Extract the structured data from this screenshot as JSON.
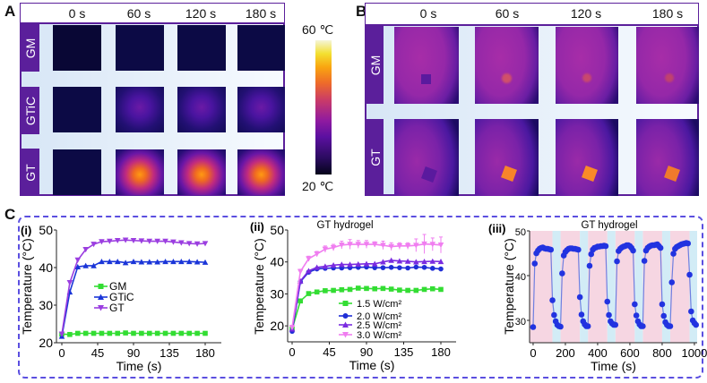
{
  "panel_a": {
    "label": "A",
    "time_labels": [
      "0 s",
      "60 s",
      "120 s",
      "180 s"
    ],
    "row_labels": [
      "GM",
      "GTiC",
      "GT"
    ],
    "colorbar": {
      "max_label": "60 ℃",
      "min_label": "20 ℃",
      "colormap": "inferno"
    }
  },
  "panel_b": {
    "label": "B",
    "time_labels": [
      "0 s",
      "60 s",
      "120 s",
      "180 s"
    ],
    "row_labels": [
      "GM",
      "GT"
    ]
  },
  "panel_c": {
    "label": "C",
    "border_color": "#5b4fe0"
  },
  "chart_data": [
    {
      "id": "i",
      "panel_label": "(i)",
      "type": "line",
      "title": "",
      "xlabel": "Time (s)",
      "ylabel": "Temperature (°C)",
      "xlim": [
        0,
        180
      ],
      "ylim": [
        20,
        50
      ],
      "xticks": [
        0,
        45,
        90,
        135,
        180
      ],
      "yticks": [
        20,
        30,
        40,
        50
      ],
      "legend_placement": "center",
      "x": [
        0,
        10,
        20,
        30,
        40,
        50,
        60,
        70,
        80,
        90,
        100,
        110,
        120,
        130,
        140,
        150,
        160,
        170,
        180
      ],
      "series": [
        {
          "name": "GM",
          "color": "#33dd33",
          "marker": "square",
          "values": [
            22.3,
            22.2,
            22.5,
            22.5,
            22.5,
            22.5,
            22.5,
            22.5,
            22.6,
            22.5,
            22.5,
            22.5,
            22.5,
            22.5,
            22.5,
            22.5,
            22.5,
            22.5,
            22.5
          ]
        },
        {
          "name": "GTiC",
          "color": "#1a35d8",
          "marker": "triangle-up",
          "values": [
            21.7,
            33.5,
            40.2,
            40.5,
            40.5,
            41.6,
            41.6,
            41.6,
            41.3,
            41.6,
            41.5,
            41.5,
            41.5,
            41.6,
            41.6,
            41.6,
            41.6,
            41.5,
            41.4
          ]
        },
        {
          "name": "GT",
          "color": "#9b3ee0",
          "marker": "triangle-down",
          "values": [
            22.3,
            36,
            42,
            44.8,
            46.2,
            46.9,
            47,
            47.2,
            47.3,
            47.2,
            47.1,
            47,
            47,
            47,
            46.8,
            46.6,
            46.4,
            46.3,
            46.4
          ]
        }
      ]
    },
    {
      "id": "ii",
      "panel_label": "(ii)",
      "type": "line",
      "title": "GT hydrogel",
      "xlabel": "Time (s)",
      "ylabel": "Temperature (°C)",
      "xlim": [
        0,
        180
      ],
      "ylim": [
        15,
        50
      ],
      "xticks": [
        0,
        45,
        90,
        135,
        180
      ],
      "yticks": [
        20,
        30,
        40,
        50
      ],
      "legend_placement": "bottom-center",
      "x": [
        0,
        10,
        20,
        30,
        40,
        50,
        60,
        70,
        80,
        90,
        100,
        110,
        120,
        130,
        140,
        150,
        160,
        170,
        180
      ],
      "series": [
        {
          "name": "1.5 W/cm²",
          "color": "#33dd33",
          "marker": "square",
          "values": [
            19,
            27.8,
            30.1,
            30.6,
            31,
            31.1,
            31.3,
            31.4,
            31.8,
            31.7,
            31.6,
            31.7,
            31.5,
            31.2,
            31.1,
            31.1,
            31.4,
            31.6,
            31.4
          ]
        },
        {
          "name": "2.0 W/cm²",
          "color": "#1f2ed6",
          "marker": "circle",
          "values": [
            18.3,
            33.8,
            36.8,
            37.8,
            38,
            38.1,
            38.1,
            38.2,
            38.3,
            38.4,
            38.2,
            38.2,
            38.3,
            38.2,
            38.1,
            38.4,
            38.3,
            38,
            37.8
          ]
        },
        {
          "name": "2.5 W/cm²",
          "color": "#7a2be0",
          "marker": "triangle-up",
          "values": [
            19,
            34,
            37.2,
            38.3,
            38.6,
            39,
            39.2,
            39.2,
            39.3,
            39.4,
            39.4,
            40,
            40.5,
            40.3,
            40.2,
            40,
            40.1,
            40.2,
            40.1
          ]
        },
        {
          "name": "3.0 W/cm²",
          "color": "#f07ef0",
          "marker": "triangle-down",
          "values": [
            19.5,
            37,
            41,
            42.5,
            44,
            44.5,
            45.3,
            45.5,
            45.5,
            45.5,
            45.5,
            45.2,
            44.8,
            45,
            45,
            45.2,
            45.6,
            45.5,
            45.3
          ],
          "error": [
            0.5,
            0.7,
            0.8,
            0.8,
            1,
            1,
            1.2,
            1.5,
            1.2,
            1.2,
            0.8,
            1.3,
            1.2,
            1,
            1,
            2,
            3,
            2,
            2.5
          ]
        }
      ]
    },
    {
      "id": "iii",
      "panel_label": "(iii)",
      "type": "line",
      "title": "GT hydrogel",
      "xlabel": "Time (s)",
      "ylabel": "Temperature (°C)",
      "xlim": [
        -22,
        1017
      ],
      "ylim": [
        25,
        50
      ],
      "xticks": [
        0,
        200,
        400,
        600,
        800,
        1000
      ],
      "yticks": [
        30,
        40,
        50
      ],
      "background_bands": {
        "laser_on_color": "#f6d6e2",
        "laser_off_color": "#d2ecf6",
        "on": [
          [
            -22,
            120
          ],
          [
            170,
            290
          ],
          [
            340,
            460
          ],
          [
            510,
            630
          ],
          [
            680,
            800
          ],
          [
            850,
            970
          ]
        ],
        "off": [
          [
            120,
            170
          ],
          [
            290,
            340
          ],
          [
            460,
            510
          ],
          [
            630,
            680
          ],
          [
            800,
            850
          ],
          [
            970,
            1017
          ]
        ]
      },
      "series": [
        {
          "color": "#2233e0",
          "line_color": "#6f7fe0",
          "marker": "circle",
          "x": [
            0,
            10,
            20,
            30,
            40,
            50,
            60,
            70,
            80,
            90,
            100,
            110,
            120,
            130,
            140,
            150,
            160,
            170,
            180,
            190,
            200,
            210,
            220,
            230,
            240,
            250,
            260,
            270,
            280,
            290,
            300,
            310,
            320,
            330,
            340,
            350,
            360,
            370,
            380,
            390,
            400,
            410,
            420,
            430,
            440,
            450,
            460,
            470,
            480,
            490,
            500,
            510,
            520,
            530,
            540,
            550,
            560,
            570,
            580,
            590,
            600,
            610,
            620,
            630,
            640,
            650,
            660,
            670,
            680,
            690,
            700,
            710,
            720,
            730,
            740,
            750,
            760,
            770,
            780,
            790,
            800,
            810,
            820,
            830,
            840,
            850,
            860,
            870,
            880,
            890,
            900,
            910,
            920,
            930,
            940,
            950,
            960,
            970,
            980,
            990,
            1000,
            1010
          ],
          "values": [
            28.5,
            42.7,
            45,
            45.6,
            46,
            46.2,
            46.3,
            46.1,
            46,
            46,
            45.9,
            45.8,
            34.5,
            31.2,
            29.8,
            29,
            28.7,
            28.6,
            40.5,
            44.5,
            45.3,
            45.7,
            46,
            46.1,
            46.1,
            46,
            46,
            45.9,
            45.8,
            35.2,
            31.3,
            29.8,
            29.1,
            28.7,
            28.7,
            42.2,
            44.8,
            45.8,
            46.2,
            46.3,
            46.5,
            46.5,
            46.6,
            46.6,
            46.7,
            46.6,
            34.2,
            31.2,
            29.8,
            29.3,
            29.0,
            29.0,
            43.2,
            45.5,
            46,
            46.3,
            46.5,
            46.6,
            46.8,
            46.8,
            46.6,
            46.2,
            45.6,
            33.6,
            31.1,
            29.8,
            29.1,
            28.7,
            28.7,
            43.3,
            45.6,
            46.2,
            46.5,
            46.7,
            46.8,
            46.8,
            46.9,
            47,
            46.6,
            46.2,
            33.6,
            31,
            29.6,
            29,
            28.7,
            28.7,
            38.5,
            44.9,
            46,
            46.4,
            46.6,
            46.8,
            47,
            47.1,
            47.2,
            47.3,
            47.2,
            40.2,
            32,
            30,
            29.4,
            29.0
          ]
        }
      ]
    }
  ]
}
